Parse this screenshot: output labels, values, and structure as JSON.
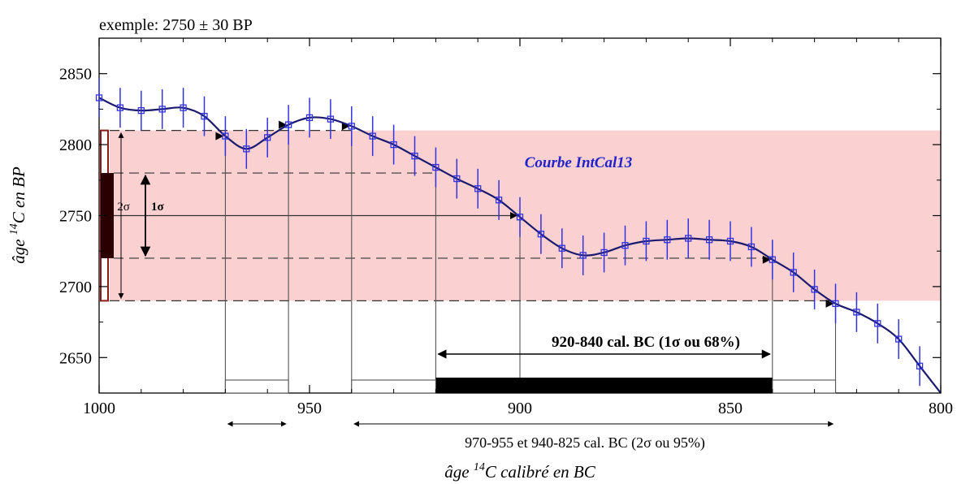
{
  "chart_data": {
    "type": "line",
    "title": "exemple: 2750 ± 30 BP",
    "xlabel_parts": {
      "pre": "âge ",
      "sup": "14",
      "post": "C calibré en BC"
    },
    "ylabel_parts": {
      "pre": "âge ",
      "sup": "14",
      "post": "C en BP"
    },
    "xlim": [
      1000,
      800
    ],
    "ylim": [
      2625,
      2875
    ],
    "xticks": [
      1000,
      950,
      900,
      850,
      800
    ],
    "yticks": [
      2650,
      2700,
      2750,
      2800,
      2850
    ],
    "band_colors": {
      "band": "#fbd0d0",
      "curve": "#1a1a6e",
      "points": "#3333dd"
    },
    "curve_label": "Courbe IntCal13",
    "sample": {
      "age": 2750,
      "sigma": 30
    },
    "sigma1_label": "1σ",
    "sigma2_label": "2σ",
    "series": [
      {
        "name": "Courbe IntCal13",
        "x": [
          1000,
          995,
          990,
          985,
          980,
          975,
          970,
          965,
          960,
          955,
          950,
          945,
          940,
          935,
          930,
          925,
          920,
          915,
          910,
          905,
          900,
          895,
          890,
          885,
          880,
          875,
          870,
          865,
          860,
          855,
          850,
          845,
          840,
          835,
          830,
          825,
          820,
          815,
          810,
          805
        ],
        "y": [
          2833,
          2826,
          2824,
          2825,
          2826,
          2820,
          2806,
          2797,
          2805,
          2814,
          2819,
          2818,
          2813,
          2806,
          2800,
          2792,
          2784,
          2776,
          2769,
          2761,
          2749,
          2737,
          2727,
          2722,
          2724,
          2729,
          2732,
          2733,
          2734,
          2733,
          2732,
          2728,
          2719,
          2710,
          2698,
          2688,
          2682,
          2674,
          2663,
          2644
        ],
        "err": [
          14,
          14,
          14,
          14,
          14,
          14,
          14,
          14,
          14,
          14,
          14,
          14,
          14,
          14,
          14,
          14,
          14,
          14,
          14,
          14,
          14,
          14,
          14,
          14,
          14,
          14,
          14,
          14,
          14,
          14,
          14,
          14,
          14,
          14,
          14,
          14,
          14,
          14,
          14,
          14
        ]
      }
    ],
    "range_1sigma": {
      "from": 920,
      "to": 840,
      "label": "920-840 cal. BC (1σ ou 68%)"
    },
    "ranges_2sigma": [
      {
        "from": 970,
        "to": 955
      },
      {
        "from": 940,
        "to": 825
      }
    ],
    "range_2sigma_label": "970-955 et 940-825 cal. BC (2σ ou 95%)"
  }
}
